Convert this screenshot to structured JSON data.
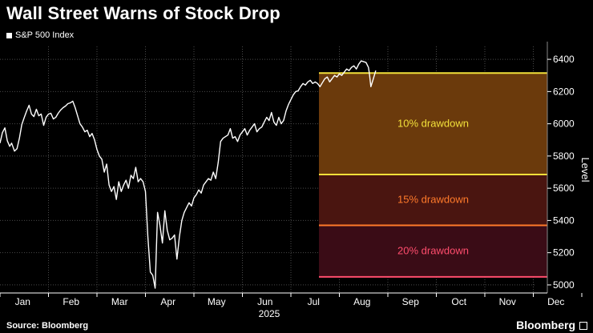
{
  "header": {
    "title": "Wall Street Warns of Stock Drop",
    "legend_label": "S&P 500 Index"
  },
  "footer": {
    "source": "Source: Bloomberg",
    "brand": "Bloomberg"
  },
  "colors": {
    "background": "#000000",
    "line": "#ffffff",
    "grid": "#4a4a4a",
    "drawdown_10": "#f2e03a",
    "drawdown_15": "#ff7a2a",
    "drawdown_20": "#ff4d6d",
    "band_10": "#6b3a0c",
    "band_15": "#4a1510",
    "band_20": "#3a0c16"
  },
  "chart_data": {
    "type": "line",
    "title": "Wall Street Warns of Stock Drop",
    "ylabel": "Level",
    "xlabel": "2025",
    "ylim": [
      4950,
      6480
    ],
    "yticks": [
      5000,
      5200,
      5400,
      5600,
      5800,
      6000,
      6200,
      6400
    ],
    "months": [
      "Jan",
      "Feb",
      "Mar",
      "Apr",
      "May",
      "Jun",
      "Jul",
      "Aug",
      "Sep",
      "Oct",
      "Nov",
      "Dec"
    ],
    "year_label": "2025",
    "series": [
      {
        "name": "S&P 500 Index",
        "x": [
          0.0,
          0.05,
          0.1,
          0.15,
          0.2,
          0.24,
          0.3,
          0.35,
          0.4,
          0.45,
          0.5,
          0.55,
          0.6,
          0.65,
          0.7,
          0.75,
          0.8,
          0.85,
          0.9,
          0.95,
          1.0,
          1.05,
          1.1,
          1.15,
          1.2,
          1.25,
          1.3,
          1.35,
          1.4,
          1.45,
          1.5,
          1.55,
          1.6,
          1.65,
          1.7,
          1.75,
          1.8,
          1.85,
          1.9,
          1.95,
          2.0,
          2.05,
          2.1,
          2.15,
          2.2,
          2.25,
          2.3,
          2.35,
          2.4,
          2.45,
          2.5,
          2.55,
          2.6,
          2.65,
          2.7,
          2.75,
          2.8,
          2.85,
          2.9,
          2.95,
          3.0,
          3.05,
          3.1,
          3.15,
          3.2,
          3.25,
          3.3,
          3.35,
          3.4,
          3.45,
          3.5,
          3.55,
          3.6,
          3.65,
          3.7,
          3.75,
          3.8,
          3.85,
          3.9,
          3.95,
          4.0,
          4.05,
          4.1,
          4.15,
          4.2,
          4.25,
          4.3,
          4.35,
          4.4,
          4.45,
          4.5,
          4.55,
          4.6,
          4.65,
          4.7,
          4.75,
          4.8,
          4.85,
          4.9,
          4.95,
          5.0,
          5.05,
          5.1,
          5.15,
          5.2,
          5.25,
          5.3,
          5.35,
          5.4,
          5.45,
          5.5,
          5.55,
          5.6,
          5.65,
          5.7,
          5.75,
          5.8,
          5.85,
          5.9,
          5.95,
          6.0,
          6.05,
          6.1,
          6.15,
          6.2,
          6.25,
          6.3,
          6.35,
          6.4,
          6.45,
          6.5,
          6.55,
          6.6
        ],
        "values": [
          5880,
          5945,
          5975,
          5895,
          5860,
          5880,
          5830,
          5845,
          5910,
          5995,
          6040,
          6080,
          6115,
          6060,
          6045,
          6090,
          6050,
          6060,
          5990,
          6040,
          6060,
          6065,
          6030,
          6040,
          6065,
          6085,
          6100,
          6110,
          6125,
          6130,
          6140,
          6100,
          6050,
          6000,
          5980,
          5950,
          5960,
          5920,
          5940,
          5900,
          5840,
          5800,
          5780,
          5700,
          5750,
          5620,
          5580,
          5610,
          5530,
          5640,
          5580,
          5620,
          5650,
          5600,
          5680,
          5660,
          5730,
          5640,
          5660,
          5640,
          5580,
          5300,
          5080,
          5060,
          4980,
          5450,
          5370,
          5260,
          5460,
          5340,
          5280,
          5290,
          5310,
          5160,
          5300,
          5400,
          5450,
          5480,
          5510,
          5490,
          5540,
          5560,
          5590,
          5570,
          5620,
          5640,
          5660,
          5650,
          5700,
          5660,
          5760,
          5890,
          5910,
          5920,
          5930,
          5970,
          5910,
          5920,
          5890,
          5930,
          5950,
          5970,
          5930,
          5960,
          5980,
          6000,
          5950,
          5970,
          5980,
          6010,
          6040,
          6020,
          6070,
          6010,
          5990,
          6040,
          6000,
          6020,
          6080,
          6120,
          6150,
          6180,
          6200,
          6205,
          6230,
          6250,
          6240,
          6260,
          6270,
          6250,
          6260,
          6250,
          6230
        ]
      }
    ],
    "extension": {
      "x": [
        6.6,
        6.65,
        6.7,
        6.75,
        6.8,
        6.85,
        6.9,
        6.95,
        7.0,
        7.05,
        7.1,
        7.15,
        7.2,
        7.25,
        7.3,
        7.35,
        7.4,
        7.45,
        7.5,
        7.55,
        7.6,
        7.62,
        7.65,
        7.7,
        7.75
      ],
      "values": [
        6230,
        6255,
        6280,
        6290,
        6260,
        6280,
        6300,
        6290,
        6310,
        6300,
        6320,
        6340,
        6330,
        6350,
        6360,
        6340,
        6370,
        6390,
        6385,
        6380,
        6350,
        6310,
        6230,
        6280,
        6330
      ]
    },
    "drawdowns": [
      {
        "label": "10% drawdown",
        "level": 6315,
        "band_bottom": 5685
      },
      {
        "label": "15% drawdown",
        "level": 5685,
        "band_bottom": 5370
      },
      {
        "label": "20% drawdown",
        "level": 5370,
        "band_bottom": 5050
      }
    ],
    "drawdown_lines": [
      6315,
      5685,
      5370,
      5050
    ]
  }
}
